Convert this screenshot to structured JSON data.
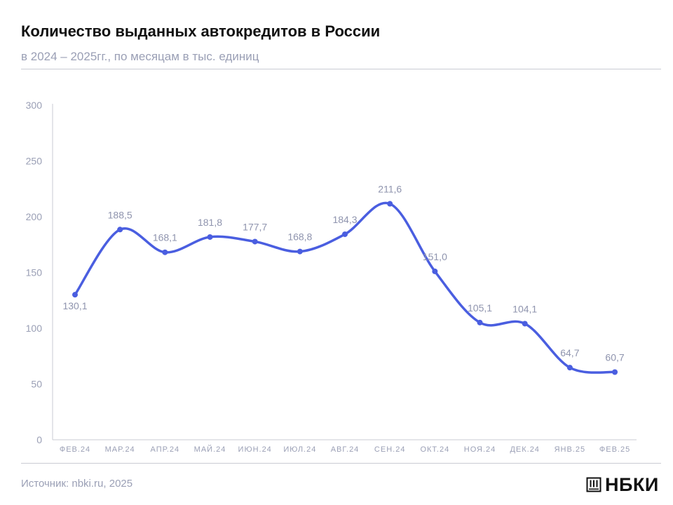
{
  "header": {
    "title": "Количество выданных автокредитов в России",
    "subtitle": "в 2024 – 2025гг., по месяцам в тыс. единиц"
  },
  "footer": {
    "source": "Источник: nbki.ru, 2025",
    "logo_text": "НБКИ",
    "logo_icon": "bank-building-icon"
  },
  "colors": {
    "line": "#4a5ee0",
    "axis_text": "#9a9fb5",
    "axis_line": "#c9cbd3",
    "label_text": "#8f94ae"
  },
  "chart_data": {
    "type": "line",
    "categories": [
      "ФЕВ.24",
      "МАР.24",
      "АПР.24",
      "МАЙ.24",
      "ИЮН.24",
      "ИЮЛ.24",
      "АВГ.24",
      "СЕН.24",
      "ОКТ.24",
      "НОЯ.24",
      "ДЕК.24",
      "ЯНВ.25",
      "ФЕВ.25"
    ],
    "series": [
      {
        "values": [
          130.1,
          188.5,
          168.1,
          181.8,
          177.7,
          168.8,
          184.3,
          211.6,
          151.0,
          105.1,
          104.1,
          64.7,
          60.7
        ],
        "labels": [
          "130,1",
          "188,5",
          "168,1",
          "181,8",
          "177,7",
          "168,8",
          "184,3",
          "211,6",
          "151,0",
          "105,1",
          "104,1",
          "64,7",
          "60,7"
        ]
      }
    ],
    "ylim": [
      0,
      300
    ],
    "yticks": [
      0,
      50,
      100,
      150,
      200,
      250,
      300
    ],
    "grid": false,
    "smooth": true
  }
}
